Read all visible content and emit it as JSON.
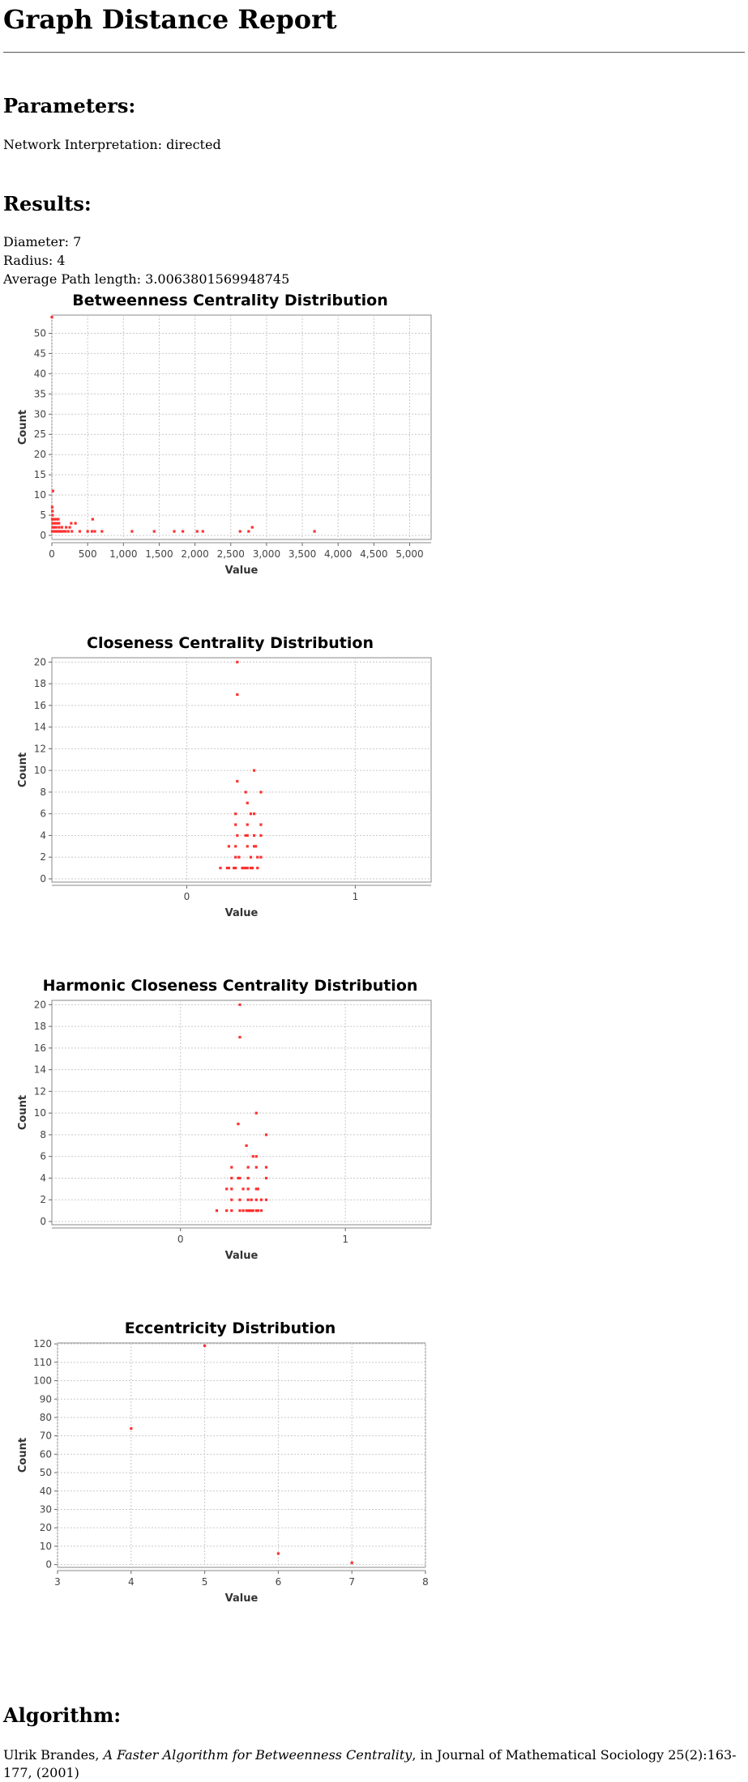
{
  "report": {
    "title": "Graph Distance Report",
    "parameters_heading": "Parameters:",
    "parameters_text": "Network Interpretation: directed",
    "results_heading": "Results:",
    "results": [
      "Diameter: 7",
      "Radius: 4",
      "Average Path length: 3.0063801569948745"
    ],
    "algorithm_heading": "Algorithm:",
    "citation": {
      "author": "Ulrik Brandes, ",
      "title": "A Faster Algorithm for Betweenness Centrality",
      "rest": ", in Journal of Mathematical Sociology 25(2):163-177, (2001)"
    }
  },
  "colors": {
    "point": "#ff3030",
    "grid": "#c9c9c9"
  },
  "chart_data": [
    {
      "type": "scatter",
      "title": "Betweenness Centrality Distribution",
      "xlabel": "Value",
      "ylabel": "Count",
      "xlim": [
        0,
        5300
      ],
      "ylim": [
        -1,
        54.5
      ],
      "xticks": [
        0,
        500,
        1000,
        1500,
        2000,
        2500,
        3000,
        3500,
        4000,
        4500,
        5000
      ],
      "xtick_labels": [
        "0",
        "500",
        "1,000",
        "1,500",
        "2,000",
        "2,500",
        "3,000",
        "3,500",
        "4,000",
        "4,500",
        "5,000"
      ],
      "yticks": [
        0,
        5,
        10,
        15,
        20,
        25,
        30,
        35,
        40,
        45,
        50
      ],
      "ytick_labels": [
        "0",
        "5",
        "10",
        "15",
        "20",
        "25",
        "30",
        "35",
        "40",
        "45",
        "50"
      ],
      "grid": true,
      "points": [
        [
          0,
          54
        ],
        [
          15,
          11
        ],
        [
          5,
          7
        ],
        [
          8,
          6
        ],
        [
          10,
          5
        ],
        [
          5,
          4
        ],
        [
          20,
          4
        ],
        [
          30,
          4
        ],
        [
          60,
          4
        ],
        [
          90,
          4
        ],
        [
          570,
          4
        ],
        [
          10,
          3
        ],
        [
          40,
          3
        ],
        [
          70,
          3
        ],
        [
          100,
          3
        ],
        [
          270,
          3
        ],
        [
          330,
          3
        ],
        [
          10,
          2
        ],
        [
          30,
          2
        ],
        [
          60,
          2
        ],
        [
          100,
          2
        ],
        [
          140,
          2
        ],
        [
          200,
          2
        ],
        [
          250,
          2
        ],
        [
          2800,
          2
        ],
        [
          5,
          1
        ],
        [
          25,
          1
        ],
        [
          45,
          1
        ],
        [
          65,
          1
        ],
        [
          85,
          1
        ],
        [
          110,
          1
        ],
        [
          130,
          1
        ],
        [
          160,
          1
        ],
        [
          190,
          1
        ],
        [
          230,
          1
        ],
        [
          280,
          1
        ],
        [
          390,
          1
        ],
        [
          500,
          1
        ],
        [
          560,
          1
        ],
        [
          600,
          1
        ],
        [
          700,
          1
        ],
        [
          1120,
          1
        ],
        [
          1430,
          1
        ],
        [
          1710,
          1
        ],
        [
          1830,
          1
        ],
        [
          2030,
          1
        ],
        [
          2110,
          1
        ],
        [
          2630,
          1
        ],
        [
          2750,
          1
        ],
        [
          3670,
          1
        ]
      ]
    },
    {
      "type": "scatter",
      "title": "Closeness Centrality Distribution",
      "xlabel": "Value",
      "ylabel": "Count",
      "xlim": [
        -0.8,
        1.45
      ],
      "ylim": [
        -0.3,
        20.4
      ],
      "xticks": [
        0,
        1
      ],
      "xtick_labels": [
        "0",
        "1"
      ],
      "yticks": [
        0,
        2,
        4,
        6,
        8,
        10,
        12,
        14,
        16,
        18,
        20
      ],
      "ytick_labels": [
        "0",
        "2",
        "4",
        "6",
        "8",
        "10",
        "12",
        "14",
        "16",
        "18",
        "20"
      ],
      "grid": true,
      "points": [
        [
          0.3,
          20
        ],
        [
          0.3,
          17
        ],
        [
          0.4,
          10
        ],
        [
          0.3,
          9
        ],
        [
          0.35,
          8
        ],
        [
          0.44,
          8
        ],
        [
          0.36,
          7
        ],
        [
          0.29,
          6
        ],
        [
          0.38,
          6
        ],
        [
          0.4,
          6
        ],
        [
          0.29,
          5
        ],
        [
          0.36,
          5
        ],
        [
          0.44,
          5
        ],
        [
          0.3,
          4
        ],
        [
          0.35,
          4
        ],
        [
          0.36,
          4
        ],
        [
          0.4,
          4
        ],
        [
          0.44,
          4
        ],
        [
          0.25,
          3
        ],
        [
          0.29,
          3
        ],
        [
          0.36,
          3
        ],
        [
          0.4,
          3
        ],
        [
          0.41,
          3
        ],
        [
          0.29,
          2
        ],
        [
          0.31,
          2
        ],
        [
          0.38,
          2
        ],
        [
          0.42,
          2
        ],
        [
          0.44,
          2
        ],
        [
          0.2,
          1
        ],
        [
          0.24,
          1
        ],
        [
          0.25,
          1
        ],
        [
          0.28,
          1
        ],
        [
          0.29,
          1
        ],
        [
          0.33,
          1
        ],
        [
          0.34,
          1
        ],
        [
          0.35,
          1
        ],
        [
          0.36,
          1
        ],
        [
          0.38,
          1
        ],
        [
          0.39,
          1
        ],
        [
          0.42,
          1
        ]
      ]
    },
    {
      "type": "scatter",
      "title": "Harmonic Closeness Centrality Distribution",
      "xlabel": "Value",
      "ylabel": "Count",
      "xlim": [
        -0.78,
        1.52
      ],
      "ylim": [
        -0.3,
        20.4
      ],
      "xticks": [
        0,
        1
      ],
      "xtick_labels": [
        "0",
        "1"
      ],
      "yticks": [
        0,
        2,
        4,
        6,
        8,
        10,
        12,
        14,
        16,
        18,
        20
      ],
      "ytick_labels": [
        "0",
        "2",
        "4",
        "6",
        "8",
        "10",
        "12",
        "14",
        "16",
        "18",
        "20"
      ],
      "grid": true,
      "points": [
        [
          0.36,
          20
        ],
        [
          0.36,
          17
        ],
        [
          0.46,
          10
        ],
        [
          0.35,
          9
        ],
        [
          0.52,
          8
        ],
        [
          0.4,
          7
        ],
        [
          0.44,
          6
        ],
        [
          0.46,
          6
        ],
        [
          0.31,
          5
        ],
        [
          0.41,
          5
        ],
        [
          0.46,
          5
        ],
        [
          0.52,
          5
        ],
        [
          0.31,
          4
        ],
        [
          0.35,
          4
        ],
        [
          0.36,
          4
        ],
        [
          0.41,
          4
        ],
        [
          0.52,
          4
        ],
        [
          0.28,
          3
        ],
        [
          0.31,
          3
        ],
        [
          0.38,
          3
        ],
        [
          0.41,
          3
        ],
        [
          0.46,
          3
        ],
        [
          0.47,
          3
        ],
        [
          0.31,
          2
        ],
        [
          0.36,
          2
        ],
        [
          0.41,
          2
        ],
        [
          0.43,
          2
        ],
        [
          0.46,
          2
        ],
        [
          0.49,
          2
        ],
        [
          0.52,
          2
        ],
        [
          0.22,
          1
        ],
        [
          0.28,
          1
        ],
        [
          0.31,
          1
        ],
        [
          0.36,
          1
        ],
        [
          0.38,
          1
        ],
        [
          0.4,
          1
        ],
        [
          0.41,
          1
        ],
        [
          0.42,
          1
        ],
        [
          0.43,
          1
        ],
        [
          0.44,
          1
        ],
        [
          0.46,
          1
        ],
        [
          0.47,
          1
        ],
        [
          0.49,
          1
        ]
      ]
    },
    {
      "type": "scatter",
      "title": "Eccentricity Distribution",
      "xlabel": "Value",
      "ylabel": "Count",
      "xlim": [
        3,
        8
      ],
      "ylim": [
        -1.5,
        120.5
      ],
      "xticks": [
        3,
        4,
        5,
        6,
        7,
        8
      ],
      "xtick_labels": [
        "3",
        "4",
        "5",
        "6",
        "7",
        "8"
      ],
      "yticks": [
        0,
        10,
        20,
        30,
        40,
        50,
        60,
        70,
        80,
        90,
        100,
        110,
        120
      ],
      "ytick_labels": [
        "0",
        "10",
        "20",
        "30",
        "40",
        "50",
        "60",
        "70",
        "80",
        "90",
        "100",
        "110",
        "120"
      ],
      "grid": true,
      "points": [
        [
          4,
          74
        ],
        [
          5,
          119
        ],
        [
          6,
          6
        ],
        [
          7,
          1
        ]
      ]
    }
  ]
}
